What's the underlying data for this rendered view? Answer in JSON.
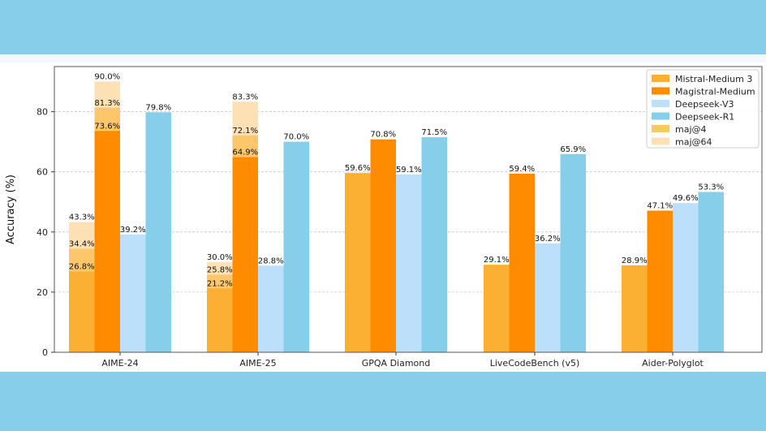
{
  "chart_data": {
    "type": "bar",
    "ylabel": "Accuracy (%)",
    "xlabel": "",
    "ylim": [
      0,
      95
    ],
    "yticks": [
      0,
      20,
      40,
      60,
      80
    ],
    "grid": "horizontal dashed",
    "legend_position": "top-right",
    "categories": [
      "AIME-24",
      "AIME-25",
      "GPQA Diamond",
      "LiveCodeBench (v5)",
      "Aider-Polyglot"
    ],
    "series": [
      {
        "name": "Mistral-Medium 3",
        "color": "#fbb034",
        "values": [
          26.8,
          21.2,
          59.6,
          29.1,
          28.9
        ]
      },
      {
        "name": "Magistral-Medium",
        "color": "#ff8c00",
        "values": [
          73.6,
          64.9,
          70.8,
          59.4,
          47.1
        ]
      },
      {
        "name": "Deepseek-V3",
        "color": "#bde0fa",
        "values": [
          39.2,
          28.8,
          59.1,
          36.2,
          49.6
        ]
      },
      {
        "name": "Deepseek-R1",
        "color": "#87ceeb",
        "values": [
          79.8,
          70.0,
          71.5,
          65.9,
          53.3
        ]
      }
    ],
    "extra_series": [
      {
        "name": "maj@4",
        "color": "#fcc66b",
        "stacked_on": "base",
        "points": [
          {
            "category": 0,
            "series": 0,
            "value": 34.4
          },
          {
            "category": 0,
            "series": 1,
            "value": 81.3
          },
          {
            "category": 1,
            "series": 0,
            "value": 25.8
          },
          {
            "category": 1,
            "series": 1,
            "value": 72.1
          }
        ]
      },
      {
        "name": "maj@64",
        "color": "#fde0b4",
        "stacked_on": "base",
        "points": [
          {
            "category": 0,
            "series": 0,
            "value": 43.3
          },
          {
            "category": 0,
            "series": 1,
            "value": 90.0
          },
          {
            "category": 1,
            "series": 0,
            "value": 30.0
          },
          {
            "category": 1,
            "series": 1,
            "value": 83.3
          }
        ]
      }
    ],
    "labels": {
      "base": [
        [
          "26.8%",
          "73.6%",
          "39.2%",
          "79.8%"
        ],
        [
          "21.2%",
          "64.9%",
          "28.8%",
          "70.0%"
        ],
        [
          "59.6%",
          "70.8%",
          "59.1%",
          "71.5%"
        ],
        [
          "29.1%",
          "59.4%",
          "36.2%",
          "65.9%"
        ],
        [
          "28.9%",
          "47.1%",
          "49.6%",
          "53.3%"
        ]
      ],
      "maj4": {
        "0-0": "34.4%",
        "0-1": "81.3%",
        "1-0": "25.8%",
        "1-1": "72.1%"
      },
      "maj64": {
        "0-0": "43.3%",
        "0-1": "90.0%",
        "1-0": "30.0%",
        "1-1": "83.3%"
      }
    },
    "legend": [
      "Mistral-Medium 3",
      "Magistral-Medium",
      "Deepseek-V3",
      "Deepseek-R1",
      "maj@4",
      "maj@64"
    ]
  }
}
